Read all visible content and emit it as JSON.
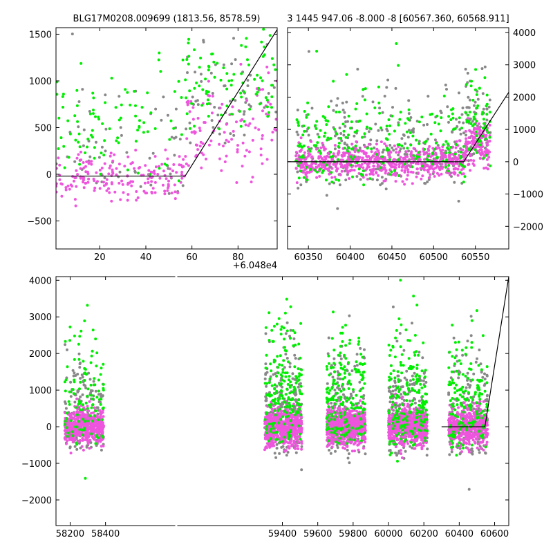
{
  "chart_data": [
    {
      "type": "scatter",
      "title": "BLG17M0208.009699 (1813.56, 8578.59)",
      "xlabel": "",
      "ylabel": "",
      "x_offset_label": "+6.048e4",
      "xlim": [
        1,
        97
      ],
      "ylim": [
        -800,
        1570
      ],
      "xticks": [
        20,
        40,
        60,
        80
      ],
      "yticks": [
        -500,
        0,
        500,
        1000,
        1500
      ],
      "series_colors": {
        "magenta": "#ee55dd",
        "green": "#00ee00",
        "grey": "#888888"
      },
      "model_line": {
        "x": [
          1,
          57,
          97
        ],
        "y": [
          -20,
          -20,
          1550
        ]
      },
      "clusters": [
        {
          "x_range": [
            1,
            57
          ],
          "magenta": {
            "n": 180,
            "y_mean": -30,
            "y_sd": 120
          },
          "green": {
            "n": 90,
            "y_mean": 450,
            "y_sd": 380
          },
          "grey": {
            "n": 60,
            "y_mean": 250,
            "y_sd": 400
          }
        },
        {
          "x_range": [
            57,
            97
          ],
          "magenta": {
            "n": 110,
            "y_mean": 500,
            "y_sd": 250
          },
          "green": {
            "n": 90,
            "y_mean": 900,
            "y_sd": 350
          },
          "grey": {
            "n": 60,
            "y_mean": 800,
            "y_sd": 400
          }
        }
      ]
    },
    {
      "type": "scatter",
      "title": "3 1445 947.06 -8.000 -8 [60567.360, 60568.911]",
      "xlabel": "",
      "ylabel": "",
      "xlim": [
        60325,
        60590
      ],
      "ylim": [
        -2700,
        4150
      ],
      "xticks": [
        60350,
        60400,
        60450,
        60500,
        60550
      ],
      "yticks": [
        -2000,
        -1000,
        0,
        1000,
        2000,
        3000,
        4000
      ],
      "yaxis_side": "right",
      "model_line": {
        "x": [
          60325,
          60536,
          60590
        ],
        "y": [
          0,
          0,
          2150
        ]
      },
      "clusters": [
        {
          "x_range": [
            60335,
            60538
          ],
          "magenta": {
            "n": 700,
            "y_mean": 0,
            "y_sd": 250
          },
          "green": {
            "n": 240,
            "y_mean": 450,
            "y_sd": 900
          },
          "grey": {
            "n": 260,
            "y_mean": 350,
            "y_sd": 900
          }
        },
        {
          "x_range": [
            60538,
            60568
          ],
          "magenta": {
            "n": 140,
            "y_mean": 500,
            "y_sd": 350
          },
          "green": {
            "n": 60,
            "y_mean": 1200,
            "y_sd": 800
          },
          "grey": {
            "n": 70,
            "y_mean": 1200,
            "y_sd": 900
          }
        }
      ]
    },
    {
      "type": "scatter",
      "title": "",
      "xlabel": "",
      "ylabel": "",
      "xlim": [
        58120,
        60680
      ],
      "ylim": [
        -2700,
        4100
      ],
      "xticks": [
        58200,
        58400,
        59400,
        59600,
        59800,
        60000,
        60200,
        60400,
        60600
      ],
      "yticks": [
        -2000,
        -1000,
        0,
        1000,
        2000,
        3000,
        4000
      ],
      "model_line": {
        "x": [
          60300,
          60545,
          60680
        ],
        "y": [
          0,
          0,
          4100
        ]
      },
      "clusters": [
        {
          "x_range": [
            58170,
            58390
          ],
          "magenta": {
            "n": 550,
            "y_mean": 0,
            "y_sd": 230
          },
          "green": {
            "n": 110,
            "y_mean": 600,
            "y_sd": 900
          },
          "grey": {
            "n": 180,
            "y_mean": 300,
            "y_sd": 800
          }
        },
        {
          "x_range": [
            59300,
            59510
          ],
          "magenta": {
            "n": 650,
            "y_mean": 0,
            "y_sd": 250
          },
          "green": {
            "n": 200,
            "y_mean": 800,
            "y_sd": 1000
          },
          "grey": {
            "n": 200,
            "y_mean": 300,
            "y_sd": 900
          }
        },
        {
          "x_range": [
            59650,
            59870
          ],
          "magenta": {
            "n": 650,
            "y_mean": 0,
            "y_sd": 250
          },
          "green": {
            "n": 200,
            "y_mean": 700,
            "y_sd": 1000
          },
          "grey": {
            "n": 200,
            "y_mean": 300,
            "y_sd": 900
          }
        },
        {
          "x_range": [
            60000,
            60220
          ],
          "magenta": {
            "n": 650,
            "y_mean": 0,
            "y_sd": 250
          },
          "green": {
            "n": 200,
            "y_mean": 700,
            "y_sd": 1000
          },
          "grey": {
            "n": 200,
            "y_mean": 300,
            "y_sd": 900
          }
        },
        {
          "x_range": [
            60340,
            60560
          ],
          "magenta": {
            "n": 500,
            "y_mean": 0,
            "y_sd": 250
          },
          "green": {
            "n": 160,
            "y_mean": 600,
            "y_sd": 1000
          },
          "grey": {
            "n": 180,
            "y_mean": 300,
            "y_sd": 900
          }
        }
      ]
    }
  ]
}
